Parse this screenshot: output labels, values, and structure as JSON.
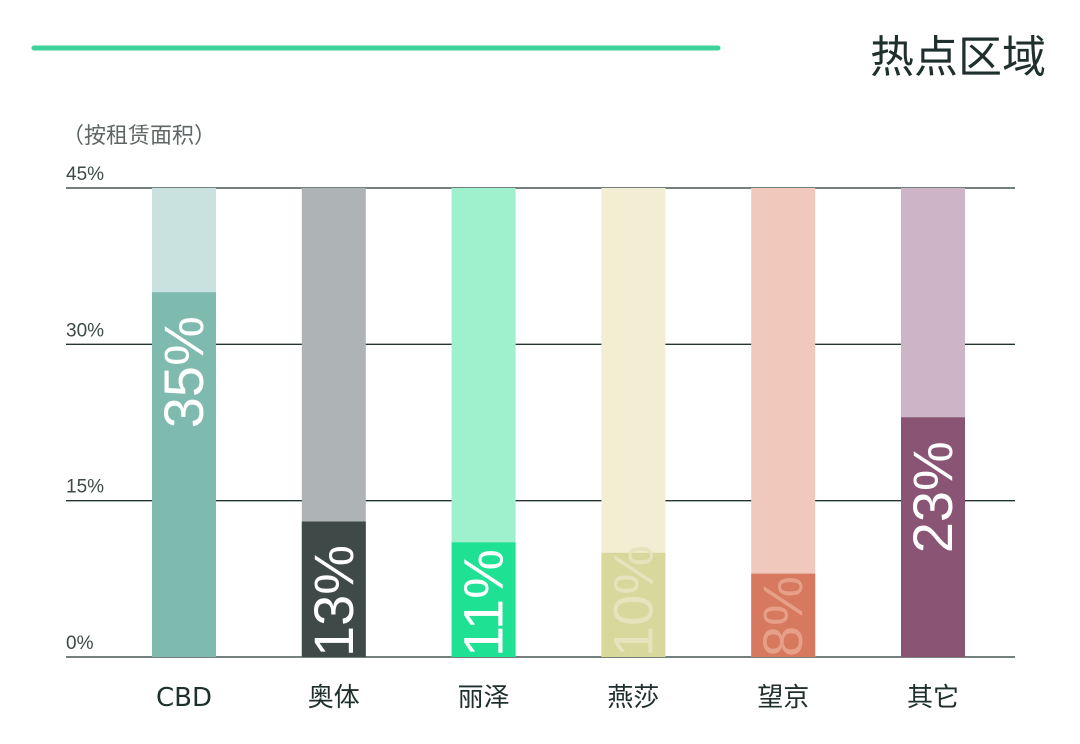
{
  "chart_data": {
    "type": "bar",
    "title": "热点区域",
    "unit_note": "（按租赁面积）",
    "categories": [
      "CBD",
      "奥体",
      "丽泽",
      "燕莎",
      "望京",
      "其它"
    ],
    "values": [
      35,
      13,
      11,
      10,
      8,
      23
    ],
    "value_labels": [
      "35%",
      "13%",
      "11%",
      "10%",
      "8%",
      "23%"
    ],
    "ylim": [
      0,
      45
    ],
    "yticks": [
      0,
      15,
      30,
      45
    ],
    "ytick_labels": [
      "0%",
      "15%",
      "30%",
      "45%"
    ],
    "grid": true,
    "colors": {
      "accent_line": "#3ed39a",
      "axis_line": "#233432",
      "bars": [
        {
          "fill": "#7fbaae",
          "track": "#c9e2df",
          "label": "#ffffff"
        },
        {
          "fill": "#3f4a48",
          "track": "#aeb3b6",
          "label": "#ffffff"
        },
        {
          "fill": "#1ee193",
          "track": "#9ff0cd",
          "label": "#ffffff"
        },
        {
          "fill": "#d8d79c",
          "track": "#f1eed3",
          "label": "#e6e3bd"
        },
        {
          "fill": "#d6795e",
          "track": "#f1c9bc",
          "label": "#e7a088"
        },
        {
          "fill": "#8a5574",
          "track": "#cdb5c5",
          "label": "#ffffff"
        }
      ]
    }
  }
}
